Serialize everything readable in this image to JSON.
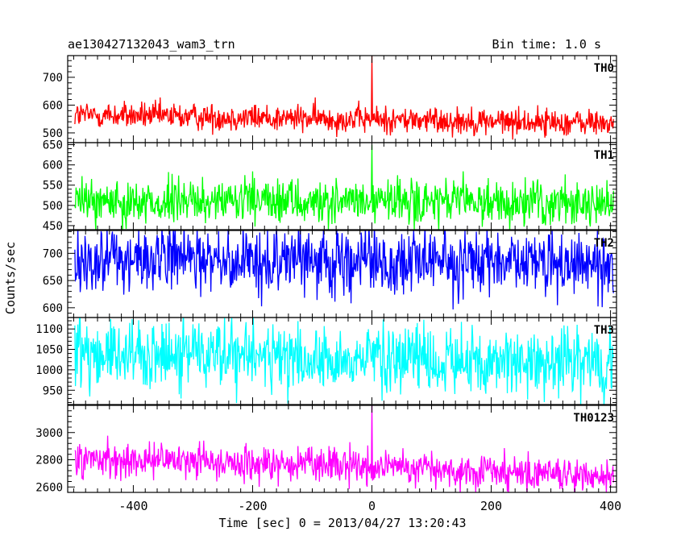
{
  "title_left": "ae130427132043_wam3_trn",
  "title_right": "Bin time: 1.0 s",
  "xlabel": "Time [sec] 0 = 2013/04/27 13:20:43",
  "ylabel": "Counts/sec",
  "chart_data": {
    "type": "line",
    "shared_x": {
      "range": [
        -510,
        410
      ],
      "ticks": [
        -400,
        -200,
        0,
        200,
        400
      ],
      "data_start": -498,
      "data_end": 405,
      "bin": 1.0
    },
    "panels": [
      {
        "name": "TH0",
        "color": "#ff0000",
        "ylim": [
          465,
          778
        ],
        "yticks": [
          500,
          600,
          700
        ],
        "baseline_start": 565,
        "baseline_end": 535,
        "noise": 25,
        "spike_at": 0,
        "spike_value": 780
      },
      {
        "name": "TH1",
        "color": "#00ff00",
        "ylim": [
          440,
          655
        ],
        "yticks": [
          450,
          500,
          550,
          600,
          650
        ],
        "baseline_start": 510,
        "baseline_end": 505,
        "noise": 28,
        "spike_at": 0,
        "spike_value": 650
      },
      {
        "name": "TH2",
        "color": "#0000ff",
        "ylim": [
          582,
          742
        ],
        "yticks": [
          600,
          650,
          700
        ],
        "baseline_start": 690,
        "baseline_end": 680,
        "noise": 30,
        "spike_at": null,
        "spike_value": null
      },
      {
        "name": "TH3",
        "color": "#00ffff",
        "ylim": [
          915,
          1128
        ],
        "yticks": [
          950,
          1000,
          1050,
          1100
        ],
        "baseline_start": 1045,
        "baseline_end": 1010,
        "noise": 42,
        "spike_at": null,
        "spike_value": null
      },
      {
        "name": "TH0123",
        "color": "#ff00ff",
        "ylim": [
          2560,
          3200
        ],
        "yticks": [
          2600,
          2800,
          3000
        ],
        "baseline_start": 2820,
        "baseline_end": 2680,
        "noise": 65,
        "spike_at": 0,
        "spike_value": 3220
      }
    ]
  }
}
